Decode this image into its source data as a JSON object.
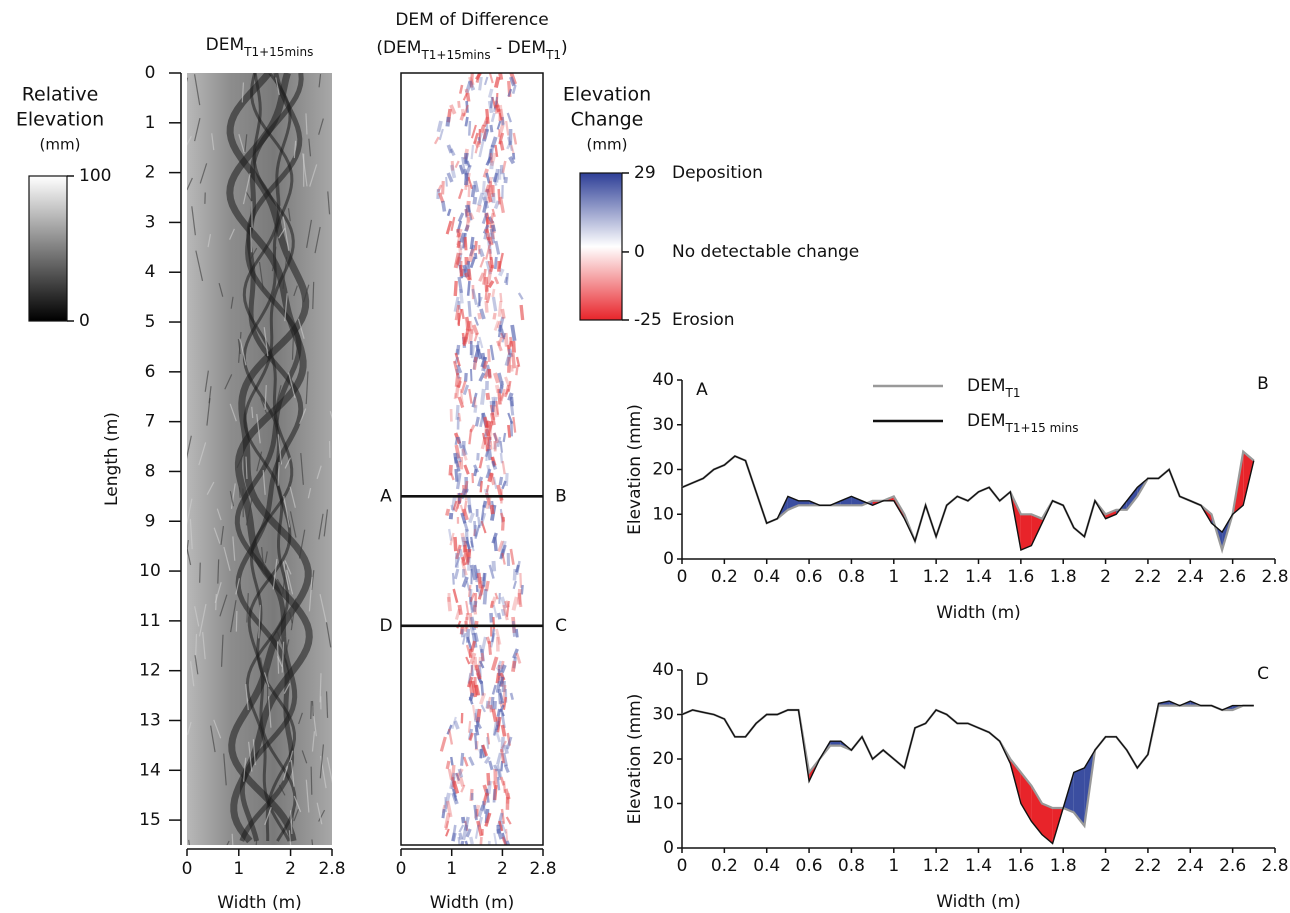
{
  "chart_data": [
    {
      "type": "image",
      "title": "DEM",
      "title_sub": "T1+15mins",
      "xlabel": "Width (m)",
      "ylabel": "Length (m)",
      "xlim": [
        0,
        2.8
      ],
      "xticks": [
        0,
        1,
        2,
        2.8
      ],
      "ylim": [
        0,
        15.5
      ],
      "yticks": [
        0,
        1,
        2,
        3,
        4,
        5,
        6,
        7,
        8,
        9,
        10,
        11,
        12,
        13,
        14,
        15
      ],
      "raster": "elevation",
      "colorbar": {
        "title": [
          "Relative",
          "Elevation",
          "(mm)"
        ],
        "lim": [
          0,
          100
        ],
        "ticks": [
          100,
          0
        ],
        "colors": [
          "#000000",
          "#ffffff"
        ]
      }
    },
    {
      "type": "image",
      "title": "DEM of Difference",
      "subtitle": [
        {
          "text": "(DEM"
        },
        {
          "sub": "T1+15mins"
        },
        {
          "text": " - DEM"
        },
        {
          "sub": "T1"
        },
        {
          "text": ")"
        }
      ],
      "xlabel": "Width (m)",
      "xlim": [
        0,
        2.8
      ],
      "xticks": [
        0,
        1,
        2,
        2.8
      ],
      "ylim": [
        0,
        15.5
      ],
      "raster": "difference",
      "sections": [
        {
          "at": 8.5,
          "start": "A",
          "end": "B"
        },
        {
          "at": 11.1,
          "start": "D",
          "end": "C"
        }
      ],
      "colorbar": {
        "title": [
          "Elevation",
          "Change",
          "(mm)"
        ],
        "lim": [
          -25,
          29
        ],
        "ticks": [
          29,
          0,
          -25
        ],
        "tick_notes": [
          "Deposition",
          "No detectable change",
          "Erosion"
        ],
        "colors": [
          "#e8242a",
          "#ffffff",
          "#2e3f97"
        ]
      }
    },
    {
      "type": "line",
      "xlabel": "Width (m)",
      "ylabel": "Elevation (mm)",
      "corner_labels": [
        "A",
        "B"
      ],
      "legend": "top",
      "xlim": [
        0,
        2.8
      ],
      "xticks": [
        0,
        0.2,
        0.4,
        0.6,
        0.8,
        1,
        1.2,
        1.4,
        1.6,
        1.8,
        2,
        2.2,
        2.4,
        2.6,
        2.8
      ],
      "ylim": [
        0,
        40
      ],
      "yticks": [
        0,
        10,
        20,
        30,
        40
      ],
      "fill_colors": {
        "erosion": "#e8242a",
        "deposition": "#3b4ea0"
      },
      "x": [
        0,
        0.05,
        0.1,
        0.15,
        0.2,
        0.25,
        0.3,
        0.35,
        0.4,
        0.45,
        0.5,
        0.55,
        0.6,
        0.65,
        0.7,
        0.75,
        0.8,
        0.85,
        0.9,
        0.95,
        1,
        1.05,
        1.1,
        1.15,
        1.2,
        1.25,
        1.3,
        1.35,
        1.4,
        1.45,
        1.5,
        1.55,
        1.6,
        1.65,
        1.7,
        1.75,
        1.8,
        1.85,
        1.9,
        1.95,
        2,
        2.05,
        2.1,
        2.15,
        2.2,
        2.25,
        2.3,
        2.35,
        2.4,
        2.45,
        2.5,
        2.55,
        2.6,
        2.65,
        2.7
      ],
      "series": [
        {
          "name": "DEM",
          "name_sub": "T1",
          "color": "#999999",
          "values": [
            16,
            17,
            18,
            20,
            21,
            23,
            22,
            15,
            8,
            9,
            11,
            12,
            12,
            12,
            12,
            12,
            12,
            12,
            13,
            13,
            14,
            10,
            4,
            12,
            5,
            12,
            14,
            13,
            15,
            16,
            13,
            15,
            10,
            10,
            9,
            13,
            12,
            7,
            5,
            13,
            10,
            11,
            11,
            14,
            18,
            18,
            20,
            14,
            13,
            12,
            10,
            2,
            10,
            24,
            22
          ]
        },
        {
          "name": "DEM",
          "name_sub": "T1+15 mins",
          "color": "#111111",
          "values": [
            16,
            17,
            18,
            20,
            21,
            23,
            22,
            15,
            8,
            9,
            14,
            13,
            13,
            12,
            12,
            13,
            14,
            13,
            12,
            13,
            13,
            9,
            4,
            12,
            5,
            12,
            14,
            13,
            15,
            16,
            13,
            15,
            2,
            3,
            8,
            13,
            12,
            7,
            5,
            13,
            9,
            10,
            13,
            16,
            18,
            18,
            20,
            14,
            13,
            12,
            8,
            6,
            10,
            12,
            22
          ]
        }
      ]
    },
    {
      "type": "line",
      "xlabel": "Width (m)",
      "ylabel": "Elevation (mm)",
      "corner_labels": [
        "D",
        "C"
      ],
      "xlim": [
        0,
        2.8
      ],
      "xticks": [
        0,
        0.2,
        0.4,
        0.6,
        0.8,
        1,
        1.2,
        1.4,
        1.6,
        1.8,
        2,
        2.2,
        2.4,
        2.6,
        2.8
      ],
      "ylim": [
        0,
        40
      ],
      "yticks": [
        0,
        10,
        20,
        30,
        40
      ],
      "fill_colors": {
        "erosion": "#e8242a",
        "deposition": "#3b4ea0"
      },
      "x": [
        0,
        0.05,
        0.1,
        0.15,
        0.2,
        0.25,
        0.3,
        0.35,
        0.4,
        0.45,
        0.5,
        0.55,
        0.6,
        0.65,
        0.7,
        0.75,
        0.8,
        0.85,
        0.9,
        0.95,
        1,
        1.05,
        1.1,
        1.15,
        1.2,
        1.25,
        1.3,
        1.35,
        1.4,
        1.45,
        1.5,
        1.55,
        1.6,
        1.65,
        1.7,
        1.75,
        1.8,
        1.85,
        1.9,
        1.95,
        2,
        2.05,
        2.1,
        2.15,
        2.2,
        2.25,
        2.3,
        2.35,
        2.4,
        2.45,
        2.5,
        2.55,
        2.6,
        2.65,
        2.7
      ],
      "series": [
        {
          "color": "#999999",
          "values": [
            30,
            31,
            30.5,
            30,
            29,
            25,
            25,
            28,
            30,
            30,
            31,
            31,
            17,
            20,
            23,
            23,
            22,
            25,
            20,
            22,
            20,
            18,
            27,
            28,
            31,
            30,
            28,
            28,
            27,
            26,
            24,
            20,
            17,
            14,
            10,
            9,
            9,
            8,
            5,
            22,
            25,
            25,
            22,
            18,
            21,
            32,
            32,
            32,
            32,
            32,
            32,
            31,
            31,
            32,
            32
          ]
        },
        {
          "color": "#111111",
          "values": [
            30,
            31,
            30.5,
            30,
            29,
            25,
            25,
            28,
            30,
            30,
            31,
            31,
            15,
            20,
            24,
            24,
            22,
            25,
            20,
            22,
            20,
            18,
            27,
            28,
            31,
            30,
            28,
            28,
            27,
            26,
            24,
            19,
            10,
            6,
            3,
            1,
            9,
            17,
            18,
            22,
            25,
            25,
            22,
            18,
            21,
            32.5,
            33,
            32,
            33,
            32,
            32,
            31,
            32,
            32,
            32
          ]
        }
      ]
    }
  ]
}
